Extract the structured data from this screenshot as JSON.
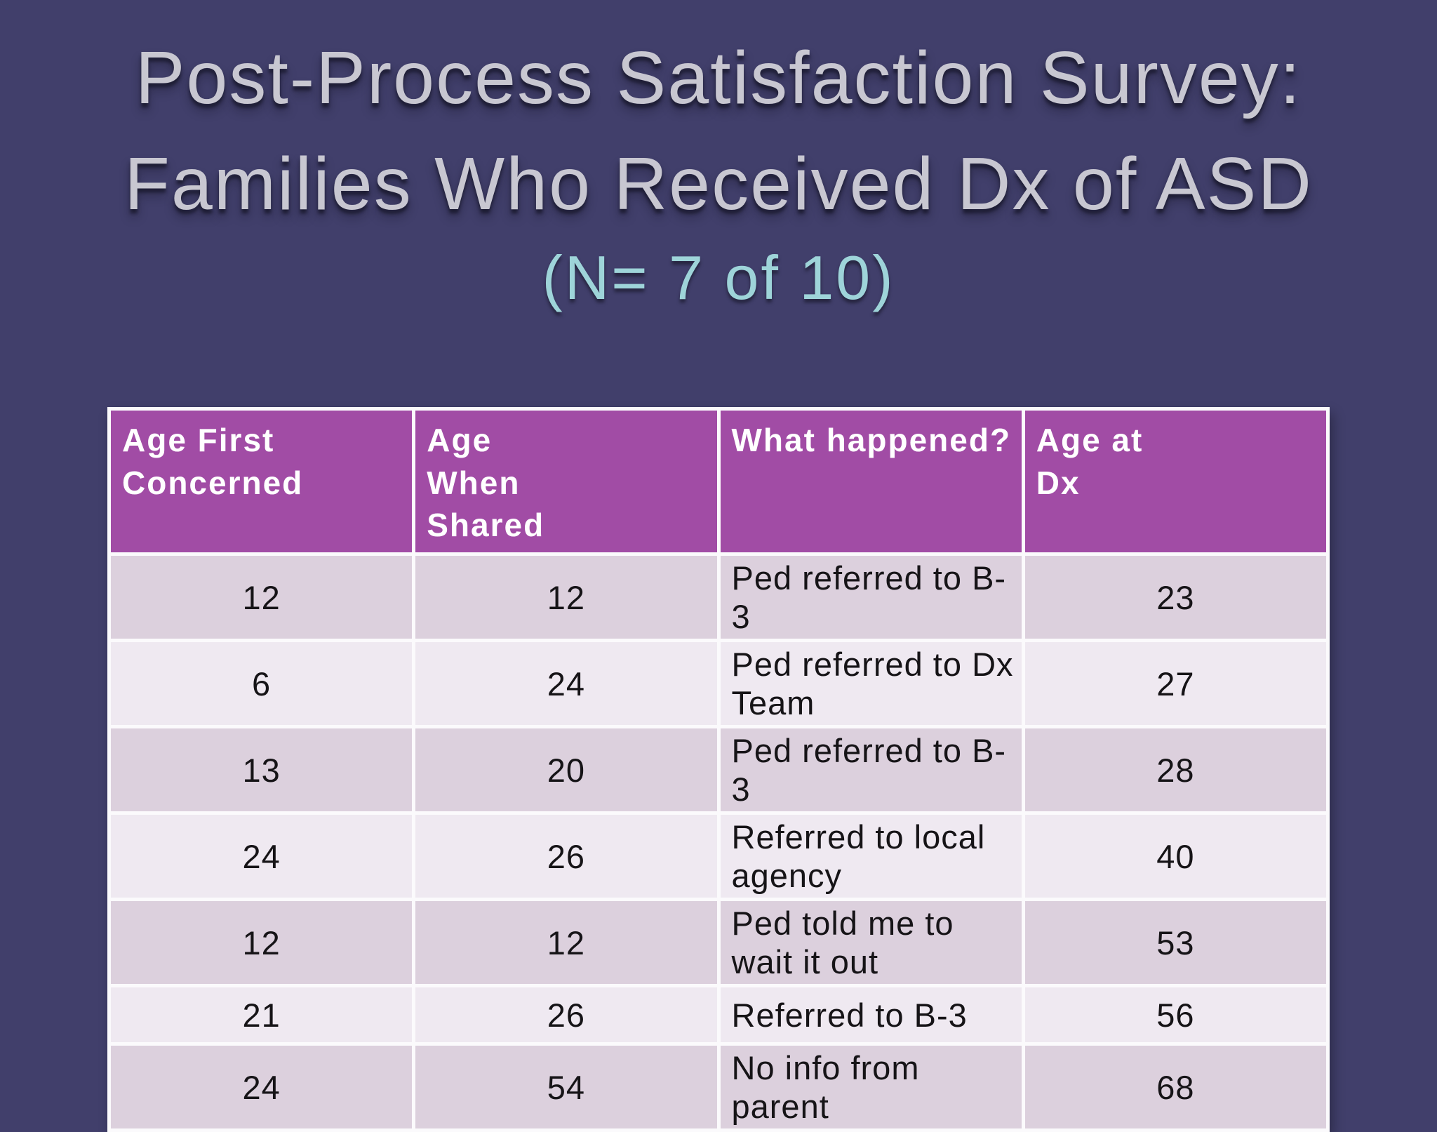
{
  "slide": {
    "title_line1": "Post-Process Satisfaction Survey:",
    "title_line2": "Families Who Received Dx of ASD",
    "subtitle": "(N= 7 of 10)"
  },
  "table": {
    "columns": [
      "Age First Concerned",
      "Age When Shared",
      "What happened?",
      "Age at Dx"
    ],
    "rows": [
      [
        "12",
        "12",
        "Ped referred to B-3",
        "23"
      ],
      [
        "6",
        "24",
        "Ped referred to Dx Team",
        "27"
      ],
      [
        "13",
        "20",
        "Ped referred to B-3",
        "28"
      ],
      [
        "24",
        "26",
        "Referred to local agency",
        "40"
      ],
      [
        "12",
        "12",
        "Ped told me to wait it out",
        "53"
      ],
      [
        "21",
        "26",
        "Referred to B-3",
        "56"
      ],
      [
        "24",
        "54",
        "No info from parent",
        "68"
      ]
    ]
  },
  "chart_data": {
    "type": "table",
    "title": "Post-Process Satisfaction Survey: Families Who Received Dx of ASD (N= 7 of 10)",
    "columns": [
      "Age First Concerned",
      "Age When Shared",
      "What happened?",
      "Age at Dx"
    ],
    "rows": [
      [
        12,
        12,
        "Ped referred to B-3",
        23
      ],
      [
        6,
        24,
        "Ped referred to Dx Team",
        27
      ],
      [
        13,
        20,
        "Ped referred to B-3",
        28
      ],
      [
        24,
        26,
        "Referred to local agency",
        40
      ],
      [
        12,
        12,
        "Ped told me to wait it out",
        53
      ],
      [
        21,
        26,
        "Referred to B-3",
        56
      ],
      [
        24,
        54,
        "No info from parent",
        68
      ]
    ]
  },
  "colors": {
    "bg": "#413f6b",
    "title": "#c8c7d1",
    "subtitle": "#9ed4d9",
    "header-bg": "#a14ca5",
    "header-text": "#ffffff",
    "row-odd": "#dcd0dd",
    "row-even": "#efe9f1",
    "cell-text": "#161417",
    "grid": "#fbfafc"
  }
}
